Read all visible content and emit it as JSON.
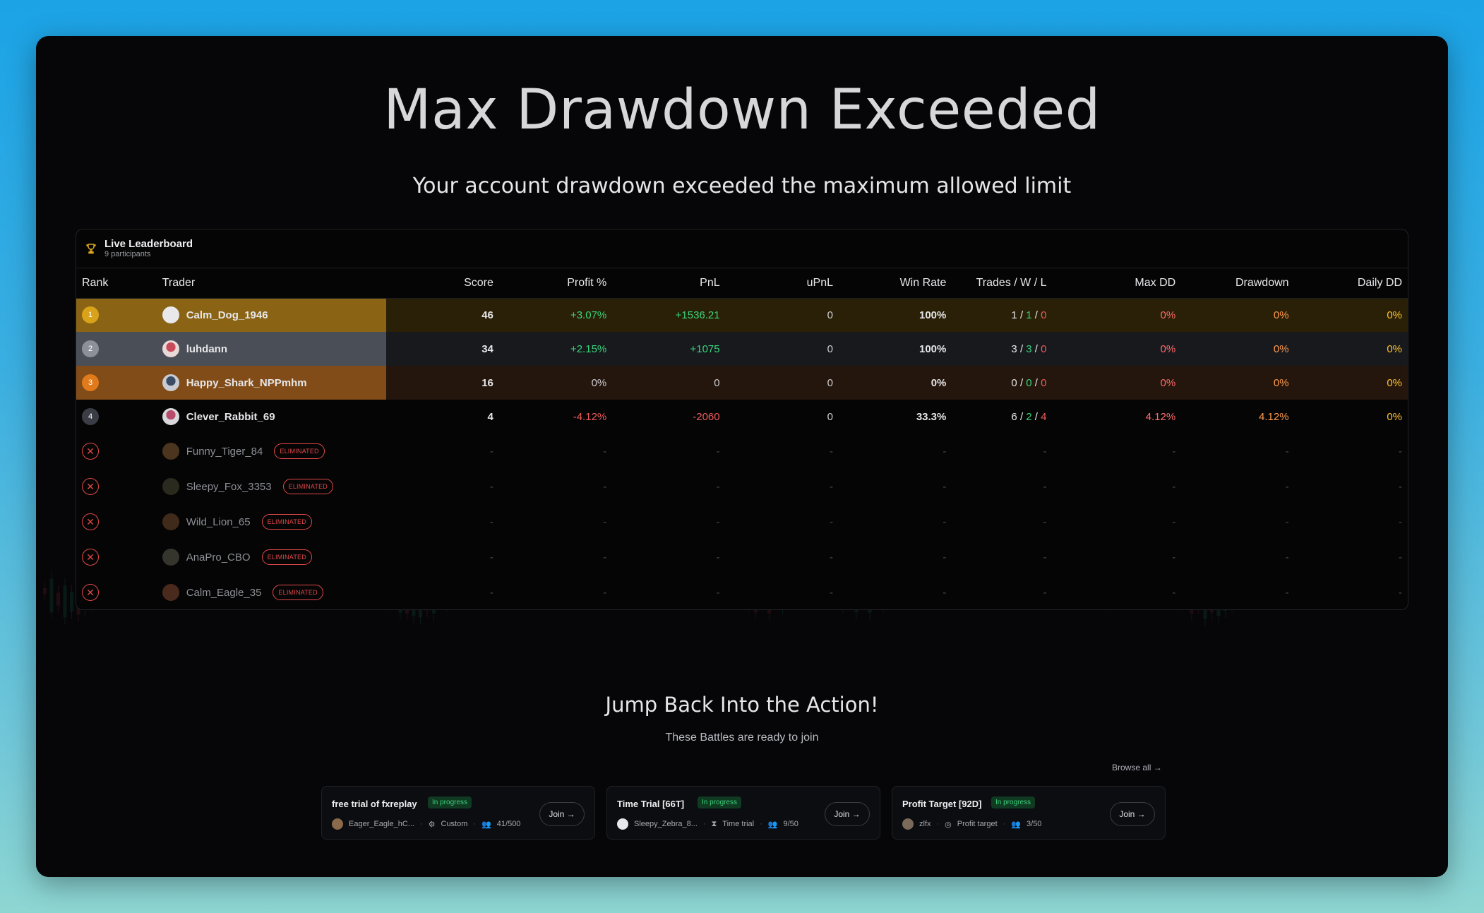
{
  "headline": "Max Drawdown Exceeded",
  "subline": "Your account drawdown exceeded the maximum allowed limit",
  "leaderboard": {
    "title": "Live Leaderboard",
    "participants": "9 participants",
    "columns": [
      "Rank",
      "Trader",
      "Score",
      "Profit %",
      "PnL",
      "uPnL",
      "Win Rate",
      "Trades / W / L",
      "Max DD",
      "Drawdown",
      "Daily DD"
    ],
    "rows": [
      {
        "rank": "1",
        "name": "Calm_Dog_1946",
        "score": "46",
        "profit": "+3.07%",
        "pnl": "+1536.21",
        "upnl": "0",
        "winrate": "100%",
        "trades": "1",
        "wins": "1",
        "losses": "0",
        "maxdd": "0%",
        "drawdown": "0%",
        "dailydd": "0%"
      },
      {
        "rank": "2",
        "name": "luhdann",
        "score": "34",
        "profit": "+2.15%",
        "pnl": "+1075",
        "upnl": "0",
        "winrate": "100%",
        "trades": "3",
        "wins": "3",
        "losses": "0",
        "maxdd": "0%",
        "drawdown": "0%",
        "dailydd": "0%"
      },
      {
        "rank": "3",
        "name": "Happy_Shark_NPPmhm",
        "score": "16",
        "profit": "0%",
        "pnl": "0",
        "upnl": "0",
        "winrate": "0%",
        "trades": "0",
        "wins": "0",
        "losses": "0",
        "maxdd": "0%",
        "drawdown": "0%",
        "dailydd": "0%"
      },
      {
        "rank": "4",
        "name": "Clever_Rabbit_69",
        "score": "4",
        "profit": "-4.12%",
        "pnl": "-2060",
        "upnl": "0",
        "winrate": "33.3%",
        "trades": "6",
        "wins": "2",
        "losses": "4",
        "maxdd": "4.12%",
        "drawdown": "4.12%",
        "dailydd": "0%"
      }
    ],
    "eliminated": [
      {
        "name": "Funny_Tiger_84"
      },
      {
        "name": "Sleepy_Fox_3353"
      },
      {
        "name": "Wild_Lion_65"
      },
      {
        "name": "AnaPro_CBO"
      },
      {
        "name": "Calm_Eagle_35"
      }
    ],
    "eliminated_label": "ELIMINATED",
    "dash": "-",
    "slash": "/"
  },
  "jump": {
    "title": "Jump Back Into the Action!",
    "subtitle": "These Battles are ready to join",
    "browse_all": "Browse all →"
  },
  "battles": [
    {
      "title": "free trial of fxreplay",
      "status": "In progress",
      "creator": "Eager_Eagle_hC...",
      "mode": "Custom",
      "count": "41/500",
      "join": "Join →"
    },
    {
      "title": "Time Trial [66T]",
      "status": "In progress",
      "creator": "Sleepy_Zebra_8...",
      "mode": "Time trial",
      "count": "9/50",
      "join": "Join →"
    },
    {
      "title": "Profit Target [92D]",
      "status": "In progress",
      "creator": "zlfx",
      "mode": "Profit target",
      "count": "3/50",
      "join": "Join →"
    }
  ],
  "colors": {
    "gold": "#d9a21b",
    "silver": "#8d9099",
    "bronze": "#e07a1a",
    "positive": "#37d67a",
    "negative": "#f05a5a",
    "eliminated": "#e04848"
  },
  "icons": {
    "trophy": "trophy-icon",
    "eliminated": "x-circle-icon",
    "mode": "gear-icon",
    "users": "users-icon"
  }
}
